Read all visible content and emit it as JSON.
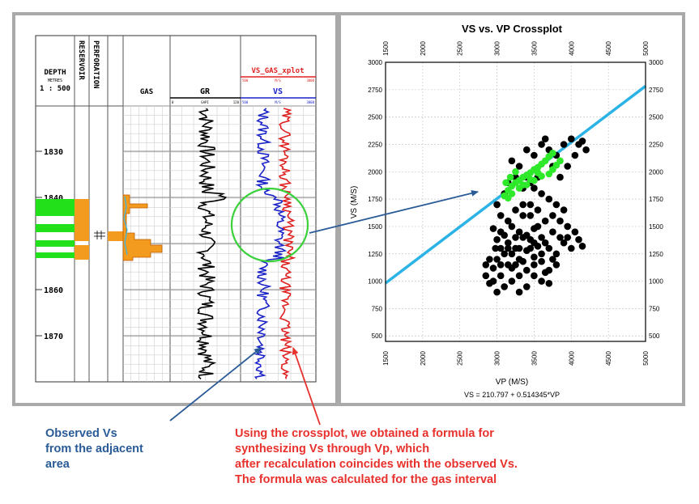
{
  "log_panel": {
    "depth_header": "DEPTH",
    "depth_units": "METRES",
    "depth_scale": "1 : 500",
    "reservoir_header": "RESERVOIR",
    "perforation_header": "PERFORATION",
    "gas_header": "GAS",
    "gr_header": "GR",
    "gr_scale": {
      "min": "0",
      "unit": "GAPI",
      "max": "120"
    },
    "xplot_header": "VS_GAS_xplot",
    "xplot_scale": {
      "min": "500",
      "unit": "M/S",
      "max": "3000"
    },
    "vs_header": "VS",
    "vs_scale": {
      "min": "500",
      "unit": "M/S",
      "max": "3000"
    },
    "depth_ticks": [
      "1830",
      "1840",
      "1850",
      "1860",
      "1870"
    ],
    "colors": {
      "reservoir": "#f39b1f",
      "gas_zone": "#22e01a",
      "vs_obs": "#1a22c8",
      "vs_synth": "#e02020",
      "gr": "#000000",
      "highlight": "#3ad13a"
    }
  },
  "chart_data": {
    "type": "scatter",
    "title": "VS vs. VP Crossplot",
    "xlabel": "VP (M/S)",
    "ylabel": "VS (M/S)",
    "xlim": [
      1500,
      5000
    ],
    "ylim": [
      450,
      3000
    ],
    "x_ticks": [
      "1500",
      "2000",
      "2500",
      "3000",
      "3500",
      "4000",
      "4500",
      "5000"
    ],
    "y_ticks": [
      "3000",
      "2750",
      "2500",
      "2250",
      "2000",
      "1750",
      "1500",
      "1250",
      "1000",
      "750",
      "500"
    ],
    "grid": true,
    "equation": "VS = 210.797 + 0.514345*VP",
    "regression": {
      "intercept": 210.797,
      "slope": 0.514345
    },
    "series": [
      {
        "color": "#000000",
        "points": [
          [
            2850,
            1050
          ],
          [
            2900,
            980
          ],
          [
            2950,
            1120
          ],
          [
            3000,
            1200
          ],
          [
            3050,
            1300
          ],
          [
            3100,
            1420
          ],
          [
            3150,
            1350
          ],
          [
            3200,
            1250
          ],
          [
            3250,
            1150
          ],
          [
            3300,
            1050
          ],
          [
            3350,
            1180
          ],
          [
            3400,
            1280
          ],
          [
            3450,
            1380
          ],
          [
            3500,
            1220
          ],
          [
            3550,
            1320
          ],
          [
            3600,
            1180
          ],
          [
            3650,
            1080
          ],
          [
            3700,
            980
          ],
          [
            3150,
            1550
          ],
          [
            3250,
            1650
          ],
          [
            3350,
            1700
          ],
          [
            3450,
            1600
          ],
          [
            3550,
            1500
          ],
          [
            3300,
            1450
          ],
          [
            3200,
            1500
          ],
          [
            3050,
            1600
          ],
          [
            2950,
            1480
          ],
          [
            3000,
            1380
          ],
          [
            3100,
            1250
          ],
          [
            3200,
            1120
          ],
          [
            3300,
            1300
          ],
          [
            3400,
            1420
          ],
          [
            3500,
            1480
          ],
          [
            3600,
            1400
          ],
          [
            3700,
            1300
          ],
          [
            3800,
            1250
          ],
          [
            3900,
            1350
          ],
          [
            4000,
            1300
          ],
          [
            4100,
            1380
          ],
          [
            4150,
            1320
          ],
          [
            3750,
            1450
          ],
          [
            3850,
            1550
          ],
          [
            3950,
            1500
          ],
          [
            3800,
            1700
          ],
          [
            3700,
            1750
          ],
          [
            3600,
            1800
          ],
          [
            3500,
            1850
          ],
          [
            3400,
            1950
          ],
          [
            3300,
            2050
          ],
          [
            3200,
            2100
          ],
          [
            3400,
            2200
          ],
          [
            3500,
            2150
          ],
          [
            3600,
            2250
          ],
          [
            3700,
            2200
          ],
          [
            3800,
            2150
          ],
          [
            3900,
            2250
          ],
          [
            4000,
            2300
          ],
          [
            4100,
            2250
          ],
          [
            4200,
            2200
          ],
          [
            3650,
            2300
          ],
          [
            3750,
            2050
          ],
          [
            3850,
            1950
          ],
          [
            3950,
            2050
          ],
          [
            3550,
            1950
          ],
          [
            3450,
            1700
          ],
          [
            3350,
            1600
          ],
          [
            3250,
            1400
          ],
          [
            3150,
            1300
          ],
          [
            3050,
            1150
          ],
          [
            2900,
            1200
          ],
          [
            2850,
            1150
          ],
          [
            2950,
            1000
          ],
          [
            3000,
            900
          ],
          [
            3100,
            950
          ],
          [
            3200,
            1000
          ],
          [
            3300,
            900
          ],
          [
            3400,
            950
          ],
          [
            3500,
            1050
          ],
          [
            3600,
            1000
          ],
          [
            3700,
            1100
          ],
          [
            3800,
            1150
          ],
          [
            3100,
            1800
          ],
          [
            3000,
            1700
          ],
          [
            3150,
            1900
          ],
          [
            3250,
            1950
          ],
          [
            3350,
            1850
          ],
          [
            3450,
            1900
          ],
          [
            3550,
            1650
          ],
          [
            3650,
            1550
          ],
          [
            3750,
            1600
          ],
          [
            3900,
            1650
          ],
          [
            4050,
            2150
          ],
          [
            4150,
            2280
          ],
          [
            3300,
            1200
          ],
          [
            3400,
            1100
          ],
          [
            3500,
            1150
          ],
          [
            3600,
            1250
          ],
          [
            3450,
            1300
          ],
          [
            3350,
            1400
          ],
          [
            3250,
            1300
          ],
          [
            3150,
            1150
          ],
          [
            3050,
            1050
          ],
          [
            2980,
            1300
          ],
          [
            3050,
            1450
          ],
          [
            3500,
            1350
          ],
          [
            3650,
            1350
          ],
          [
            3750,
            1200
          ],
          [
            3850,
            1400
          ],
          [
            3950,
            1400
          ],
          [
            4050,
            1450
          ]
        ]
      },
      {
        "color": "#2ee82a",
        "points": [
          [
            3100,
            1780
          ],
          [
            3150,
            1830
          ],
          [
            3200,
            1870
          ],
          [
            3250,
            1900
          ],
          [
            3300,
            1920
          ],
          [
            3350,
            1950
          ],
          [
            3400,
            1970
          ],
          [
            3450,
            1990
          ],
          [
            3500,
            2020
          ],
          [
            3550,
            2040
          ],
          [
            3600,
            2070
          ],
          [
            3650,
            2100
          ],
          [
            3700,
            2140
          ],
          [
            3750,
            2170
          ],
          [
            3800,
            2060
          ],
          [
            3750,
            2020
          ],
          [
            3850,
            2100
          ],
          [
            3700,
            1980
          ],
          [
            3600,
            1960
          ],
          [
            3500,
            1920
          ],
          [
            3400,
            1880
          ],
          [
            3300,
            1850
          ],
          [
            3200,
            1800
          ],
          [
            3150,
            1760
          ],
          [
            3120,
            1900
          ],
          [
            3180,
            1950
          ],
          [
            3250,
            2000
          ],
          [
            3350,
            1880
          ],
          [
            3450,
            1930
          ],
          [
            3550,
            1990
          ]
        ]
      }
    ]
  },
  "captions": {
    "observed": [
      "Observed Vs",
      "from the adjacent",
      "area"
    ],
    "formula": [
      "Using the crossplot, we obtained a formula for",
      "synthesizing Vs through Vp, which",
      "after recalculation coincides with the observed Vs.",
      "The formula was calculated for the gas interval"
    ],
    "colors": {
      "observed": "#2a5b97",
      "formula": "#e8312c"
    }
  }
}
